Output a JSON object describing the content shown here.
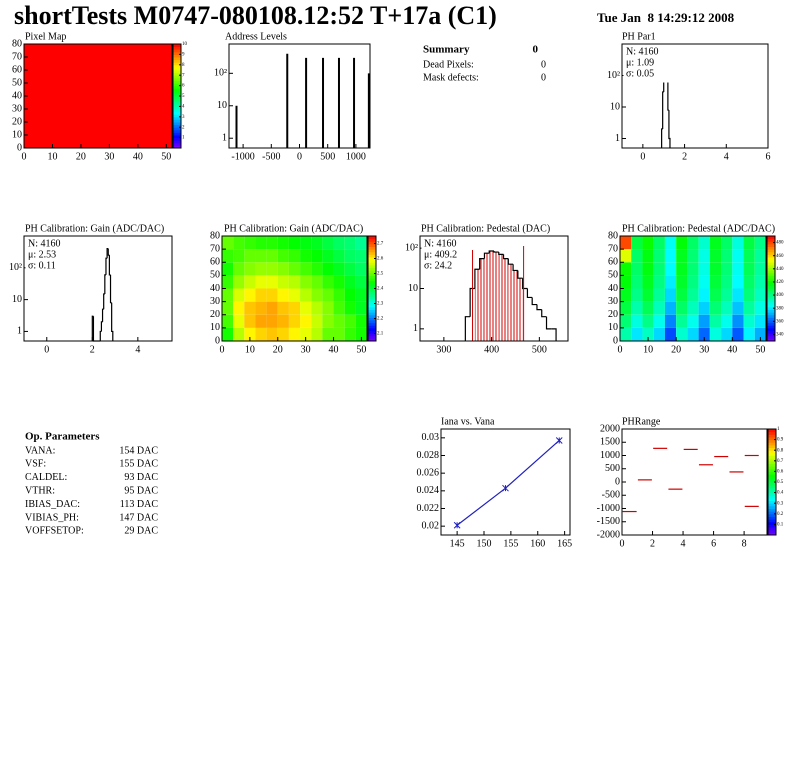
{
  "header": {
    "title": "shortTests M0747-080108.12:52 T+17a (C1)",
    "date": "Tue Jan  8 14:29:12 2008"
  },
  "summary": {
    "title": "Summary",
    "value": 0,
    "rows": [
      [
        "Dead Pixels:",
        0
      ],
      [
        "Mask defects:",
        0
      ]
    ]
  },
  "parameters": {
    "title": "Op. Parameters",
    "rows": [
      [
        "VANA:",
        "154 DAC"
      ],
      [
        "VSF:",
        "155 DAC"
      ],
      [
        "CALDEL:",
        "93 DAC"
      ],
      [
        "VTHR:",
        "95 DAC"
      ],
      [
        "IBIAS_DAC:",
        "113 DAC"
      ],
      [
        "VIBIAS_PH:",
        "147 DAC"
      ],
      [
        "VOFFSETOP:",
        "29 DAC"
      ]
    ]
  },
  "chart_data": [
    {
      "type": "heatmap",
      "title": "Pixel Map",
      "xlim": [
        0,
        52
      ],
      "ylim": [
        0,
        80
      ],
      "xticks": [
        0,
        10,
        20,
        30,
        40,
        50
      ],
      "yticks": [
        0,
        10,
        20,
        30,
        40,
        50,
        60,
        70,
        80
      ],
      "xbins": [
        0,
        52
      ],
      "ybins": [
        0,
        80
      ],
      "values": [
        [
          10
        ]
      ],
      "zlim": [
        0,
        10
      ],
      "zticks": [
        1,
        2,
        3,
        4,
        5,
        6,
        7,
        8,
        9,
        10
      ]
    },
    {
      "type": "needle",
      "title": "Address Levels",
      "logy": true,
      "xlim": [
        -1250,
        1250
      ],
      "ylim": [
        0.5,
        800
      ],
      "xticks": [
        -1000,
        -500,
        0,
        500,
        1000
      ],
      "yticks": [
        1,
        10,
        {
          "value": 100,
          "label": "10²"
        }
      ],
      "x": [
        -1117,
        -217,
        117,
        417,
        700,
        967,
        1230
      ],
      "values": [
        10,
        400,
        300,
        300,
        300,
        300,
        100
      ]
    },
    {
      "type": "histogram",
      "title": "PH Par1",
      "logy": true,
      "xlim": [
        -1,
        6
      ],
      "ylim": [
        0.5,
        1000
      ],
      "xticks": [
        0,
        2,
        4,
        6
      ],
      "yticks": [
        1,
        10,
        {
          "value": 100,
          "label": "10²"
        }
      ],
      "bins": [
        0.9,
        0.95,
        1.0,
        1.05,
        1.1,
        1.15,
        1.2,
        1.25,
        1.3
      ],
      "values": [
        2,
        30,
        350,
        700,
        500,
        80,
        8,
        1
      ],
      "stats": [
        {
          "text": "N: 4160"
        },
        {
          "text": "μ: 1.09"
        },
        {
          "text": "σ: 0.05"
        }
      ]
    },
    {
      "type": "histogram",
      "title": "PH Calibration: Gain (ADC/DAC)",
      "logy": true,
      "xlim": [
        -1,
        5.5
      ],
      "ylim": [
        0.5,
        1000
      ],
      "xticks": [
        0,
        2,
        4
      ],
      "yticks": [
        1,
        10,
        {
          "value": 100,
          "label": "10²"
        }
      ],
      "bins": [
        2.0,
        2.05,
        2.1,
        2.15,
        2.2,
        2.25,
        2.3,
        2.35,
        2.4,
        2.45,
        2.5,
        2.55,
        2.6,
        2.65,
        2.7,
        2.75,
        2.8,
        2.85,
        2.9
      ],
      "values": [
        3,
        0,
        0,
        0,
        0,
        0,
        0,
        1,
        2,
        5,
        15,
        60,
        200,
        400,
        250,
        60,
        8,
        1
      ],
      "stats": [
        {
          "text": "N: 4160"
        },
        {
          "text": "μ: 2.53"
        },
        {
          "text": "σ: 0.11"
        }
      ]
    },
    {
      "type": "heatmap",
      "title": "PH Calibration: Gain (ADC/DAC)",
      "xlim": [
        0,
        52
      ],
      "ylim": [
        0,
        80
      ],
      "xticks": [
        0,
        10,
        20,
        30,
        40,
        50
      ],
      "yticks": [
        0,
        10,
        20,
        30,
        40,
        50,
        60,
        70,
        80
      ],
      "xbins": [
        0,
        4,
        8,
        12,
        16,
        20,
        24,
        28,
        32,
        36,
        40,
        44,
        48,
        52
      ],
      "ybins": [
        0,
        10,
        20,
        30,
        40,
        50,
        60,
        70,
        80
      ],
      "values": [
        [
          2.45,
          2.55,
          2.6,
          2.62,
          2.63,
          2.62,
          2.6,
          2.58,
          2.55,
          2.5,
          2.5,
          2.47,
          2.45
        ],
        [
          2.48,
          2.58,
          2.63,
          2.65,
          2.65,
          2.64,
          2.62,
          2.6,
          2.56,
          2.52,
          2.5,
          2.48,
          2.45
        ],
        [
          2.5,
          2.6,
          2.63,
          2.64,
          2.65,
          2.63,
          2.62,
          2.58,
          2.55,
          2.52,
          2.48,
          2.45,
          2.42
        ],
        [
          2.5,
          2.57,
          2.6,
          2.62,
          2.62,
          2.6,
          2.58,
          2.55,
          2.52,
          2.5,
          2.47,
          2.44,
          2.42
        ],
        [
          2.47,
          2.53,
          2.56,
          2.58,
          2.58,
          2.56,
          2.55,
          2.52,
          2.5,
          2.47,
          2.45,
          2.42,
          2.4
        ],
        [
          2.45,
          2.5,
          2.52,
          2.53,
          2.53,
          2.52,
          2.5,
          2.48,
          2.46,
          2.44,
          2.42,
          2.4,
          2.38
        ],
        [
          2.47,
          2.48,
          2.5,
          2.5,
          2.5,
          2.48,
          2.47,
          2.45,
          2.44,
          2.42,
          2.4,
          2.38,
          2.37
        ],
        [
          2.5,
          2.48,
          2.47,
          2.46,
          2.46,
          2.45,
          2.44,
          2.43,
          2.42,
          2.4,
          2.38,
          2.37,
          2.35
        ]
      ],
      "zlim": [
        2.05,
        2.75
      ],
      "zticks": [
        2.1,
        2.2,
        2.3,
        2.4,
        2.5,
        2.6,
        2.7
      ]
    },
    {
      "type": "histogram",
      "title": "PH Calibration: Pedestal (DAC)",
      "logy": true,
      "xlim": [
        250,
        560
      ],
      "ylim": [
        0.5,
        200
      ],
      "xticks": [
        300,
        400,
        500
      ],
      "yticks": [
        1,
        10,
        {
          "value": 100,
          "label": "10²"
        }
      ],
      "bins": [
        345,
        355,
        365,
        375,
        385,
        395,
        405,
        415,
        425,
        435,
        445,
        455,
        465,
        475,
        485,
        495,
        505,
        515,
        525,
        535
      ],
      "values": [
        2,
        10,
        30,
        55,
        75,
        85,
        80,
        70,
        55,
        40,
        28,
        18,
        10,
        6,
        4,
        3,
        2,
        1,
        1
      ],
      "cuts": [
        360,
        467
      ],
      "color": "#d00000",
      "stats": [
        {
          "text": "N: 4160"
        },
        {
          "text": "μ: 409.2",
          "color": "#d00000"
        },
        {
          "text": "σ: 24.2",
          "color": "#d00000"
        }
      ]
    },
    {
      "type": "heatmap",
      "title": "PH Calibration: Pedestal (ADC/DAC)",
      "xlim": [
        0,
        52
      ],
      "ylim": [
        0,
        80
      ],
      "xticks": [
        0,
        10,
        20,
        30,
        40,
        50
      ],
      "yticks": [
        0,
        10,
        20,
        30,
        40,
        50,
        60,
        70,
        80
      ],
      "xbins": [
        0,
        4,
        8,
        12,
        16,
        20,
        24,
        28,
        32,
        36,
        40,
        44,
        48,
        52
      ],
      "ybins": [
        0,
        10,
        20,
        30,
        40,
        50,
        60,
        70,
        80
      ],
      "values": [
        [
          395,
          380,
          392,
          378,
          358,
          390,
          378,
          362,
          388,
          378,
          360,
          382,
          372
        ],
        [
          403,
          388,
          400,
          386,
          366,
          398,
          386,
          370,
          396,
          386,
          368,
          390,
          380
        ],
        [
          410,
          395,
          407,
          393,
          373,
          405,
          393,
          377,
          403,
          393,
          375,
          397,
          387
        ],
        [
          415,
          400,
          412,
          398,
          378,
          410,
          398,
          382,
          408,
          398,
          380,
          402,
          392
        ],
        [
          418,
          403,
          415,
          401,
          381,
          413,
          401,
          385,
          411,
          401,
          383,
          405,
          395
        ],
        [
          420,
          405,
          417,
          403,
          383,
          415,
          403,
          387,
          413,
          403,
          385,
          407,
          397
        ],
        [
          450,
          405,
          417,
          403,
          383,
          415,
          403,
          387,
          413,
          403,
          385,
          407,
          397
        ],
        [
          480,
          410,
          420,
          405,
          385,
          418,
          405,
          390,
          415,
          405,
          388,
          410,
          400
        ]
      ],
      "zlim": [
        330,
        490
      ],
      "zticks": [
        340,
        360,
        380,
        400,
        420,
        440,
        460,
        480
      ]
    },
    {
      "type": "line",
      "title": "Iana vs. Vana",
      "xlim": [
        142,
        166
      ],
      "ylim": [
        0.019,
        0.031
      ],
      "xticks": [
        145,
        150,
        155,
        160,
        165
      ],
      "yticks": [
        0.02,
        0.022,
        0.024,
        0.026,
        0.028,
        0.03
      ],
      "x": [
        145,
        154,
        164
      ],
      "values": [
        0.0201,
        0.0243,
        0.0297
      ],
      "color": "#2020c0"
    },
    {
      "type": "marker",
      "title": "PHRange",
      "xlim": [
        0,
        9.5
      ],
      "ylim": [
        -2000,
        2000
      ],
      "xticks": [
        0,
        2,
        4,
        6,
        8
      ],
      "yticks": [
        -2000,
        -1500,
        -1000,
        -500,
        0,
        500,
        1000,
        1500,
        2000
      ],
      "x": [
        0.5,
        1.5,
        2.5,
        3.5,
        4.5,
        5.5,
        6.5,
        7.5,
        8.5,
        8.5
      ],
      "values": [
        -1115,
        80,
        1270,
        -270,
        1230,
        650,
        960,
        380,
        1000,
        -920
      ],
      "color": "#d00000",
      "zlim": [
        0,
        1
      ],
      "zticks": [
        0.1,
        0.2,
        0.3,
        0.4,
        0.5,
        0.6,
        0.7,
        0.8,
        0.9,
        1
      ]
    }
  ]
}
